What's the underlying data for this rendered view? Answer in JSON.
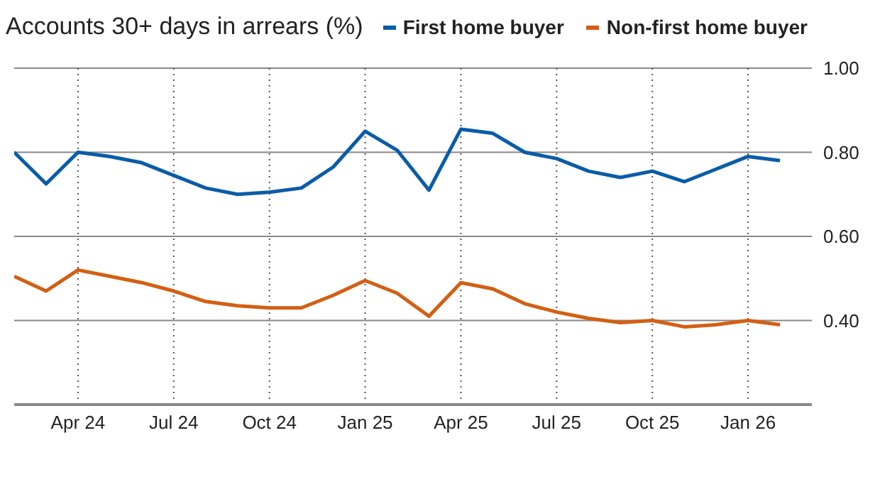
{
  "chart_data": {
    "type": "line",
    "title": "Accounts 30+ days in arrears (%)",
    "x": [
      "2024-02",
      "2024-03",
      "2024-04",
      "2024-05",
      "2024-06",
      "2024-07",
      "2024-08",
      "2024-09",
      "2024-10",
      "2024-11",
      "2024-12",
      "2025-01",
      "2025-02",
      "2025-03",
      "2025-04",
      "2025-05",
      "2025-06",
      "2025-07",
      "2025-08",
      "2025-09",
      "2025-10",
      "2025-11",
      "2025-12",
      "2026-01",
      "2026-02"
    ],
    "series": [
      {
        "name": "First home buyer",
        "color": "#0a5ca8",
        "values": [
          0.8,
          0.725,
          0.8,
          0.79,
          0.775,
          0.745,
          0.715,
          0.7,
          0.705,
          0.715,
          0.765,
          0.85,
          0.805,
          0.71,
          0.855,
          0.845,
          0.8,
          0.785,
          0.755,
          0.74,
          0.755,
          0.73,
          0.76,
          0.79,
          0.78
        ]
      },
      {
        "name": "Non-first home buyer",
        "color": "#d35f13",
        "values": [
          0.505,
          0.47,
          0.52,
          0.505,
          0.49,
          0.47,
          0.445,
          0.435,
          0.43,
          0.43,
          0.46,
          0.495,
          0.465,
          0.41,
          0.49,
          0.475,
          0.44,
          0.42,
          0.405,
          0.395,
          0.4,
          0.385,
          0.39,
          0.4,
          0.39
        ]
      }
    ],
    "xlim": [
      "2024-02",
      "2026-03"
    ],
    "xticks": [
      {
        "value": "2024-04",
        "label": "Apr 24"
      },
      {
        "value": "2024-07",
        "label": "Jul 24"
      },
      {
        "value": "2024-10",
        "label": "Oct 24"
      },
      {
        "value": "2025-01",
        "label": "Jan 25"
      },
      {
        "value": "2025-04",
        "label": "Apr 25"
      },
      {
        "value": "2025-07",
        "label": "Jul 25"
      },
      {
        "value": "2025-10",
        "label": "Oct 25"
      },
      {
        "value": "2026-01",
        "label": "Jan 26"
      }
    ],
    "ylim": [
      0.2,
      1.0
    ],
    "yticks": [
      {
        "value": 0.2,
        "label": null
      },
      {
        "value": 0.4,
        "label": "0.40"
      },
      {
        "value": 0.6,
        "label": "0.60"
      },
      {
        "value": 0.8,
        "label": "0.80"
      },
      {
        "value": 1.0,
        "label": "1.00"
      }
    ],
    "grid": true,
    "legend": "top",
    "marker": "none",
    "line_style": "solid"
  }
}
